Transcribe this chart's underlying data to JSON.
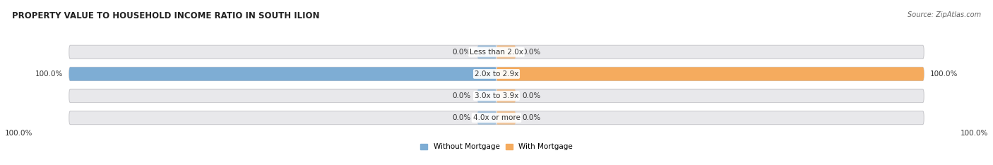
{
  "title": "PROPERTY VALUE TO HOUSEHOLD INCOME RATIO IN SOUTH ILION",
  "source": "Source: ZipAtlas.com",
  "categories": [
    "Less than 2.0x",
    "2.0x to 2.9x",
    "3.0x to 3.9x",
    "4.0x or more"
  ],
  "without_mortgage": [
    0.0,
    100.0,
    0.0,
    0.0
  ],
  "with_mortgage": [
    0.0,
    100.0,
    0.0,
    0.0
  ],
  "color_without": "#7eadd4",
  "color_with": "#f5ab5e",
  "color_bg": "#e8e8eb",
  "figsize": [
    14.06,
    2.34
  ],
  "dpi": 100,
  "legend_without": "Without Mortgage",
  "legend_with": "With Mortgage",
  "title_fontsize": 8.5,
  "label_fontsize": 7.5,
  "source_fontsize": 7.0,
  "stub_size": 4.5
}
